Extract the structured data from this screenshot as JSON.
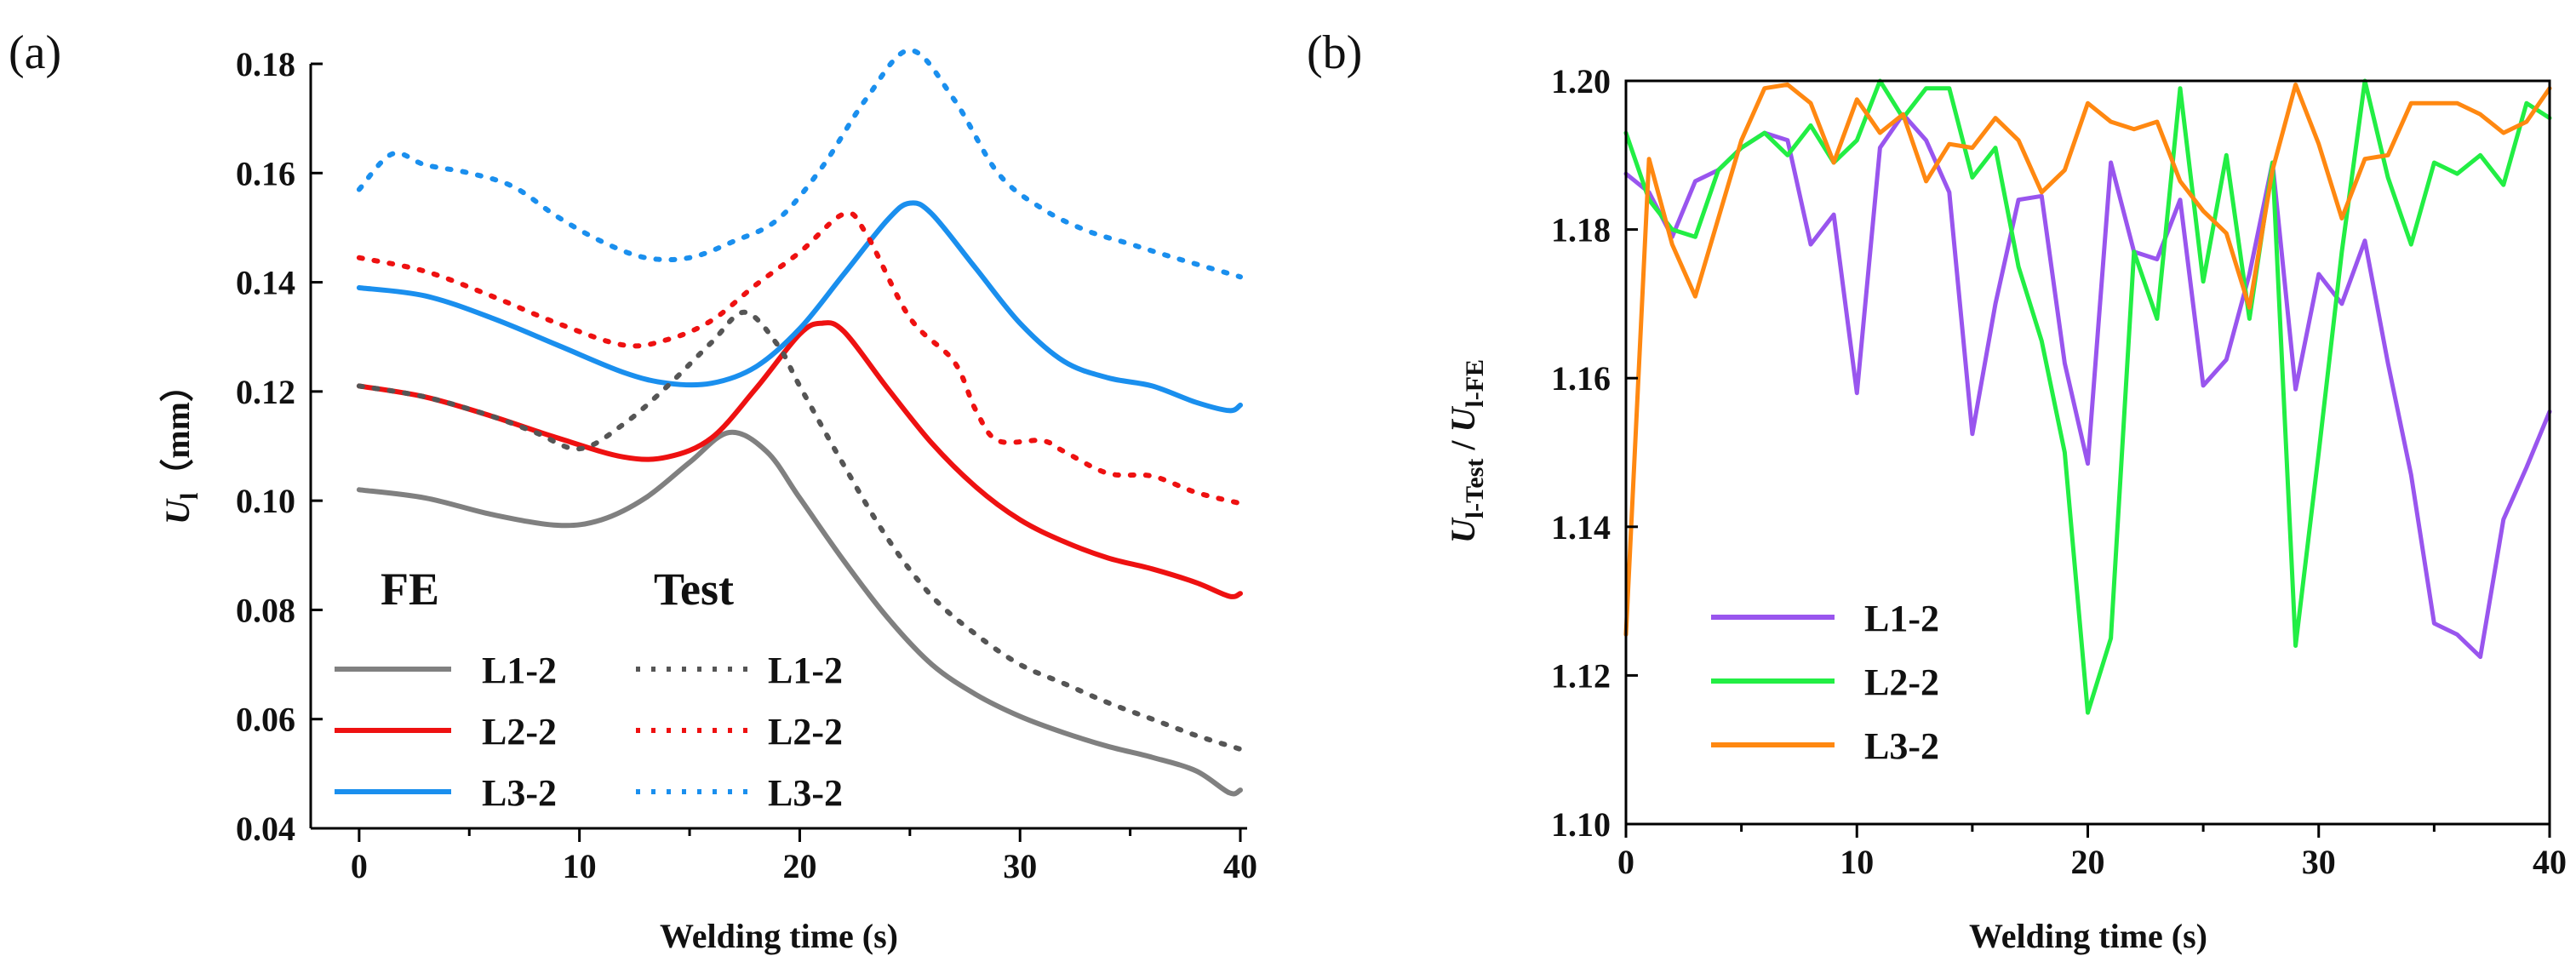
{
  "chart_data": [
    {
      "panel_label": "(a)",
      "type": "line",
      "xlabel": "Welding time (s)",
      "ylabel": {
        "main": "U",
        "sub": "l",
        "unit": "（mm）"
      },
      "xlim": [
        -1,
        40
      ],
      "ylim": [
        0.04,
        0.18
      ],
      "xticks": [
        "0",
        "10",
        "20",
        "30",
        "40"
      ],
      "yticks": [
        "0.04",
        "0.06",
        "0.08",
        "0.10",
        "0.12",
        "0.14",
        "0.16",
        "0.18"
      ],
      "legend_headers": [
        "FE",
        "Test"
      ],
      "series": [
        {
          "name": "L1-2",
          "group": "FE",
          "style": "solid",
          "color": "#808080",
          "x": [
            0,
            3,
            6,
            9,
            11,
            13,
            15,
            16.8,
            18.5,
            20,
            22,
            24,
            26,
            28,
            30,
            32,
            34,
            36,
            38,
            39.5,
            40
          ],
          "y": [
            0.102,
            0.1005,
            0.0975,
            0.0955,
            0.0965,
            0.1005,
            0.107,
            0.1125,
            0.109,
            0.1005,
            0.089,
            0.0785,
            0.07,
            0.0645,
            0.0605,
            0.0575,
            0.055,
            0.053,
            0.0505,
            0.0465,
            0.047
          ]
        },
        {
          "name": "L2-2",
          "group": "FE",
          "style": "solid",
          "color": "#ee1111",
          "x": [
            0,
            3,
            6,
            9,
            12,
            14,
            16,
            18,
            20,
            21,
            22,
            24,
            26,
            28,
            30,
            32,
            34,
            36,
            38,
            39.5,
            40
          ],
          "y": [
            0.121,
            0.119,
            0.1155,
            0.1115,
            0.108,
            0.108,
            0.1115,
            0.1205,
            0.1305,
            0.1325,
            0.131,
            0.1205,
            0.1105,
            0.1025,
            0.0965,
            0.0925,
            0.0895,
            0.0875,
            0.085,
            0.0825,
            0.083
          ]
        },
        {
          "name": "L3-2",
          "group": "FE",
          "style": "solid",
          "color": "#1a8fee",
          "x": [
            0,
            3,
            6,
            9,
            12,
            14,
            16,
            18,
            20,
            22,
            24,
            25,
            26,
            28,
            30,
            32,
            34,
            36,
            38,
            39.5,
            40
          ],
          "y": [
            0.139,
            0.1375,
            0.1335,
            0.1285,
            0.1235,
            0.1215,
            0.1215,
            0.1245,
            0.1315,
            0.1415,
            0.1515,
            0.1545,
            0.1525,
            0.1425,
            0.1325,
            0.1255,
            0.1225,
            0.121,
            0.118,
            0.1165,
            0.1175
          ]
        },
        {
          "name": "L1-2",
          "group": "Test",
          "style": "dotted",
          "color": "#555555",
          "x": [
            0,
            3,
            6,
            8,
            10,
            12,
            14,
            16,
            17.5,
            19,
            20,
            22,
            24,
            26,
            28,
            30,
            32,
            34,
            36,
            38,
            40
          ],
          "y": [
            0.121,
            0.119,
            0.1155,
            0.1125,
            0.1095,
            0.114,
            0.121,
            0.129,
            0.1345,
            0.1285,
            0.121,
            0.1065,
            0.093,
            0.0825,
            0.0755,
            0.07,
            0.0665,
            0.063,
            0.06,
            0.057,
            0.0545
          ]
        },
        {
          "name": "L2-2",
          "group": "Test",
          "style": "dotted",
          "color": "#ee1111",
          "x": [
            0,
            3,
            6,
            9,
            12,
            14,
            16,
            18,
            20,
            22,
            23,
            25,
            27,
            28,
            29,
            31,
            32,
            34,
            36,
            38,
            40
          ],
          "y": [
            0.1445,
            0.142,
            0.1375,
            0.1325,
            0.1285,
            0.1295,
            0.133,
            0.1395,
            0.1455,
            0.1525,
            0.149,
            0.1335,
            0.1255,
            0.1165,
            0.111,
            0.111,
            0.109,
            0.105,
            0.1045,
            0.1015,
            0.0995
          ]
        },
        {
          "name": "L3-2",
          "group": "Test",
          "style": "dotted",
          "color": "#1a8fee",
          "x": [
            0,
            1.5,
            3,
            5,
            7,
            9,
            11,
            13,
            15,
            17,
            19,
            21,
            23,
            25,
            27,
            29,
            31,
            33,
            35,
            37,
            40
          ],
          "y": [
            0.157,
            0.1635,
            0.1615,
            0.16,
            0.1575,
            0.152,
            0.1475,
            0.1445,
            0.1445,
            0.1475,
            0.1515,
            0.161,
            0.1735,
            0.1825,
            0.1735,
            0.16,
            0.1535,
            0.1495,
            0.147,
            0.1445,
            0.141
          ]
        }
      ]
    },
    {
      "panel_label": "(b)",
      "type": "line",
      "xlabel": "Welding time (s)",
      "ylabel": {
        "num_main": "U",
        "num_sub": "l-Test",
        "sep": " / ",
        "den_main": "U",
        "den_sub": "l-FE"
      },
      "xlim": [
        0,
        40
      ],
      "ylim": [
        1.1,
        1.2
      ],
      "xticks": [
        "0",
        "10",
        "20",
        "30",
        "40"
      ],
      "yticks": [
        "1.10",
        "1.12",
        "1.14",
        "1.16",
        "1.18",
        "1.20"
      ],
      "series": [
        {
          "name": "L1-2",
          "color": "#9955ee",
          "x": [
            0,
            1,
            2,
            3,
            4,
            5,
            6,
            7,
            8,
            9,
            10,
            11,
            12,
            13,
            14,
            15,
            16,
            17,
            18,
            19,
            20,
            21,
            22,
            23,
            24,
            25,
            26,
            27,
            28,
            29,
            30,
            31,
            32,
            33,
            34,
            35,
            36,
            37,
            38,
            39,
            40
          ],
          "y": [
            1.1875,
            1.185,
            1.179,
            1.1865,
            1.188,
            1.191,
            1.193,
            1.192,
            1.178,
            1.182,
            1.158,
            1.191,
            1.1955,
            1.192,
            1.185,
            1.1525,
            1.17,
            1.184,
            1.1845,
            1.162,
            1.1485,
            1.189,
            1.177,
            1.176,
            1.184,
            1.159,
            1.1625,
            1.174,
            1.189,
            1.1585,
            1.174,
            1.17,
            1.1785,
            1.162,
            1.147,
            1.127,
            1.1255,
            1.1225,
            1.141,
            1.148,
            1.1555
          ]
        },
        {
          "name": "L2-2",
          "color": "#22ee44",
          "x": [
            0,
            1,
            2,
            3,
            4,
            5,
            6,
            7,
            8,
            9,
            10,
            11,
            12,
            13,
            14,
            15,
            16,
            17,
            18,
            19,
            20,
            21,
            22,
            23,
            24,
            25,
            26,
            27,
            28,
            29,
            30,
            31,
            32,
            33,
            34,
            35,
            36,
            37,
            38,
            39,
            40
          ],
          "y": [
            1.193,
            1.184,
            1.18,
            1.179,
            1.188,
            1.191,
            1.193,
            1.19,
            1.194,
            1.189,
            1.192,
            1.2,
            1.195,
            1.199,
            1.199,
            1.187,
            1.191,
            1.175,
            1.165,
            1.15,
            1.115,
            1.125,
            1.177,
            1.168,
            1.199,
            1.173,
            1.19,
            1.168,
            1.189,
            1.124,
            1.15,
            1.177,
            1.2,
            1.187,
            1.178,
            1.189,
            1.1875,
            1.19,
            1.186,
            1.197,
            1.195
          ]
        },
        {
          "name": "L3-2",
          "color": "#ff8811",
          "x": [
            0,
            1,
            2,
            3,
            4,
            5,
            6,
            7,
            8,
            9,
            10,
            11,
            12,
            13,
            14,
            15,
            16,
            17,
            18,
            19,
            20,
            21,
            22,
            23,
            24,
            25,
            26,
            27,
            28,
            29,
            30,
            31,
            32,
            33,
            34,
            35,
            36,
            37,
            38,
            39,
            40
          ],
          "y": [
            1.1255,
            1.1895,
            1.178,
            1.171,
            1.1815,
            1.192,
            1.199,
            1.1995,
            1.197,
            1.189,
            1.1975,
            1.193,
            1.1955,
            1.1865,
            1.1915,
            1.191,
            1.195,
            1.192,
            1.185,
            1.188,
            1.197,
            1.1945,
            1.1935,
            1.1945,
            1.1865,
            1.1825,
            1.1795,
            1.1695,
            1.188,
            1.1995,
            1.1915,
            1.1815,
            1.1895,
            1.19,
            1.197,
            1.197,
            1.197,
            1.1955,
            1.193,
            1.1945,
            1.199
          ]
        }
      ]
    }
  ]
}
